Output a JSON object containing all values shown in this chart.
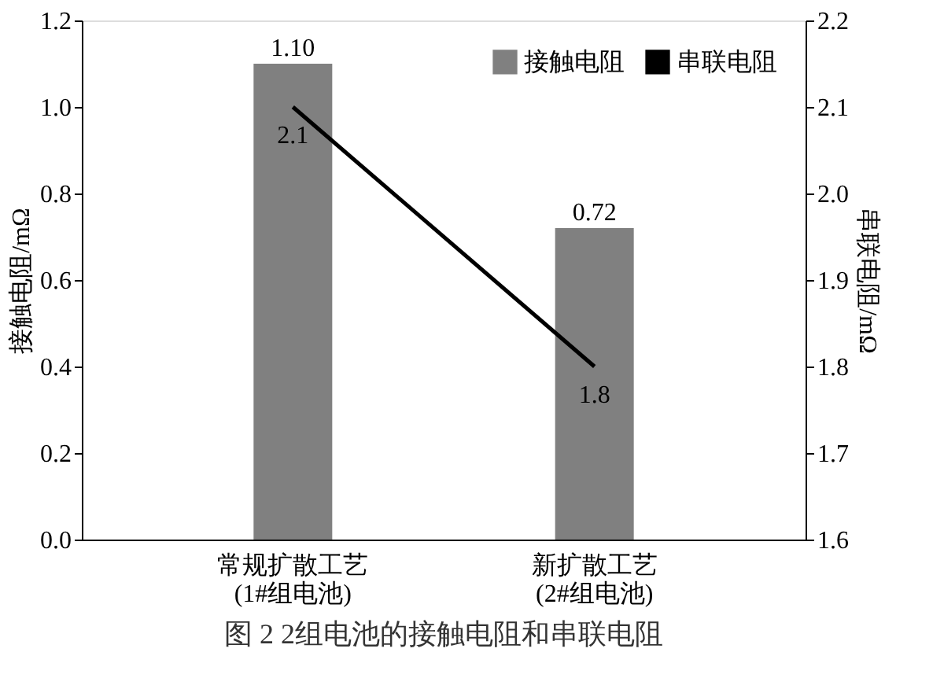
{
  "chart_data": {
    "type": "bar",
    "title": "图 2 2组电池的接触电阻和串联电阻",
    "categories": [
      "常规扩散工艺\n(1#组电池)",
      "新扩散工艺\n(2#组电池)"
    ],
    "ylabel": "接触电阻/mΩ",
    "y2label": "串联电阻/mΩ",
    "ylim": [
      0,
      1.2
    ],
    "yticks": [
      {
        "value": 0,
        "label": "0.0"
      },
      0.2,
      0.4,
      0.6,
      0.8,
      {
        "value": 1,
        "label": "1.0"
      },
      1.2
    ],
    "y2lim": [
      1.6,
      2.2
    ],
    "y2ticks": [
      1.6,
      1.7,
      1.8,
      1.9,
      {
        "value": 2,
        "label": "2.0"
      },
      2.1,
      2.2
    ],
    "series": [
      {
        "name": "接触电阻",
        "color": "#808080",
        "values": [
          1.1,
          0.72
        ],
        "value_labels": [
          "1.10",
          "0.72"
        ]
      },
      {
        "name": "串联电阻",
        "type": "line",
        "axis": "y2",
        "color": "#000000",
        "values": [
          2.1,
          1.8
        ],
        "value_labels": [
          "2.1",
          "1.8"
        ]
      }
    ],
    "legend": "top right",
    "grid": false
  }
}
